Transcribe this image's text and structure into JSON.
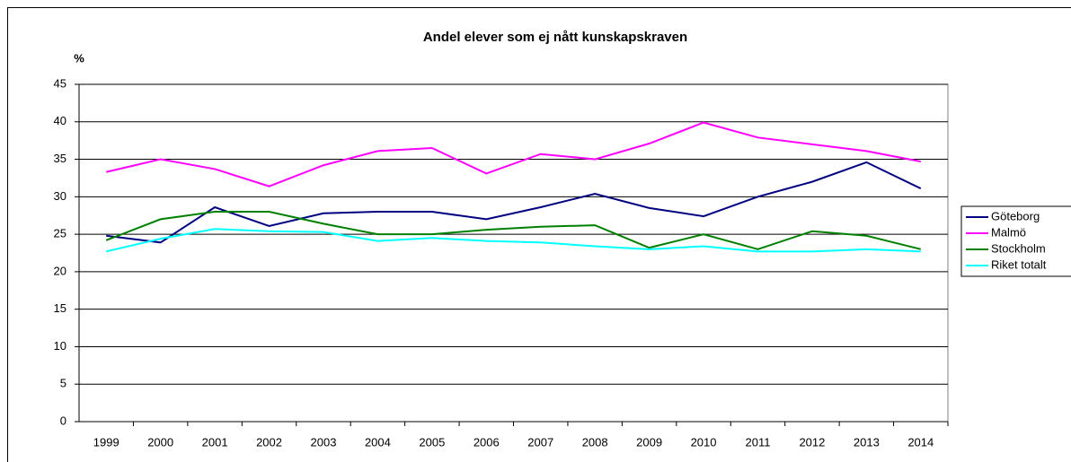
{
  "chart_data": {
    "type": "line",
    "title": "Andel elever som ej nått kunskapskraven",
    "y_label": "%",
    "categories": [
      "1999",
      "2000",
      "2001",
      "2002",
      "2003",
      "2004",
      "2005",
      "2006",
      "2007",
      "2008",
      "2009",
      "2010",
      "2011",
      "2012",
      "2013",
      "2014"
    ],
    "series": [
      {
        "name": "Göteborg",
        "color": "#000080",
        "values": [
          24.8,
          23.9,
          28.6,
          26.1,
          27.8,
          28,
          28,
          27,
          28.6,
          30.4,
          28.5,
          27.4,
          30,
          32,
          34.6,
          31.1
        ]
      },
      {
        "name": "Malmö",
        "color": "#ff00ff",
        "values": [
          33.3,
          35,
          33.7,
          31.4,
          34.2,
          36.1,
          36.5,
          33.1,
          35.7,
          35,
          37.1,
          39.9,
          37.9,
          37,
          36.1,
          34.7
        ]
      },
      {
        "name": "Stockholm",
        "color": "#008000",
        "values": [
          24.2,
          27,
          28,
          28,
          26.4,
          25,
          25,
          25.6,
          26,
          26.2,
          23.2,
          25,
          23,
          25.4,
          24.8,
          23
        ]
      },
      {
        "name": "Riket totalt",
        "color": "#00ffff",
        "values": [
          22.7,
          24.4,
          25.7,
          25.4,
          25.3,
          24.1,
          24.5,
          24.1,
          23.9,
          23.4,
          23,
          23.4,
          22.7,
          22.7,
          23,
          22.7
        ]
      }
    ],
    "ylim": [
      0,
      45
    ],
    "yticks": [
      0,
      5,
      10,
      15,
      20,
      25,
      30,
      35,
      40,
      45
    ],
    "grid": true,
    "legend": "right"
  }
}
